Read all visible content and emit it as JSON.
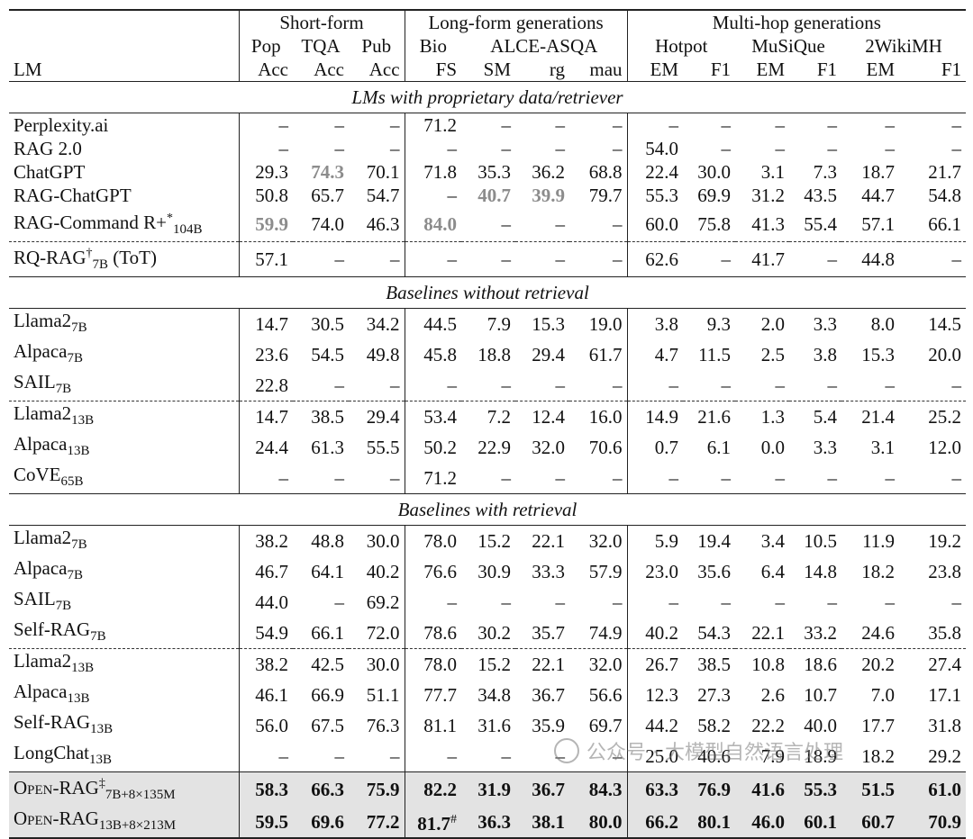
{
  "header": {
    "lm_label": "LM",
    "groups": {
      "short": "Short-form",
      "long": "Long-form generations",
      "multihop": "Multi-hop generations"
    },
    "subgroups": {
      "pop": "Pop",
      "tqa": "TQA",
      "pub": "Pub",
      "bio": "Bio",
      "alce": "ALCE-ASQA",
      "hotpot": "Hotpot",
      "musique": "MuSiQue",
      "wiki": "2WikiMH"
    },
    "metrics": [
      "Acc",
      "Acc",
      "Acc",
      "FS",
      "SM",
      "rg",
      "mau",
      "EM",
      "F1",
      "EM",
      "F1",
      "EM",
      "F1"
    ]
  },
  "sections": {
    "proprietary": "LMs with proprietary data/retriever",
    "no_retrieval": "Baselines without retrieval",
    "with_retrieval": "Baselines with retrieval"
  },
  "rows": {
    "perplexity": {
      "name": "Perplexity.ai",
      "vals": [
        "–",
        "–",
        "–",
        "71.2",
        "–",
        "–",
        "–",
        "–",
        "–",
        "–",
        "–",
        "–",
        "–"
      ]
    },
    "rag2": {
      "name": "RAG 2.0",
      "vals": [
        "–",
        "–",
        "–",
        "–",
        "–",
        "–",
        "–",
        "54.0",
        "–",
        "–",
        "–",
        "–",
        "–"
      ]
    },
    "chatgpt": {
      "name": "ChatGPT",
      "vals": [
        "29.3",
        "74.3",
        "70.1",
        "71.8",
        "35.3",
        "36.2",
        "68.8",
        "22.4",
        "30.0",
        "3.1",
        "7.3",
        "18.7",
        "21.7"
      ]
    },
    "ragchatgpt": {
      "name": "RAG-ChatGPT",
      "vals": [
        "50.8",
        "65.7",
        "54.7",
        "–",
        "40.7",
        "39.9",
        "79.7",
        "55.3",
        "69.9",
        "31.2",
        "43.5",
        "44.7",
        "54.8"
      ]
    },
    "ragcommand": {
      "name": "RAG-Command R+",
      "sup": "*",
      "sub": "104B",
      "vals": [
        "59.9",
        "74.0",
        "46.3",
        "84.0",
        "–",
        "–",
        "–",
        "60.0",
        "75.8",
        "41.3",
        "55.4",
        "57.1",
        "66.1"
      ]
    },
    "rqrag": {
      "name": "RQ-RAG",
      "sup": "†",
      "sub": "7B",
      "suffix": " (ToT)",
      "vals": [
        "57.1",
        "–",
        "–",
        "–",
        "–",
        "–",
        "–",
        "62.6",
        "–",
        "41.7",
        "–",
        "44.8",
        "–"
      ]
    },
    "nr_llama7": {
      "name": "Llama2",
      "sub": "7B",
      "vals": [
        "14.7",
        "30.5",
        "34.2",
        "44.5",
        "7.9",
        "15.3",
        "19.0",
        "3.8",
        "9.3",
        "2.0",
        "3.3",
        "8.0",
        "14.5"
      ]
    },
    "nr_alpaca7": {
      "name": "Alpaca",
      "sub": "7B",
      "vals": [
        "23.6",
        "54.5",
        "49.8",
        "45.8",
        "18.8",
        "29.4",
        "61.7",
        "4.7",
        "11.5",
        "2.5",
        "3.8",
        "15.3",
        "20.0"
      ]
    },
    "nr_sail7": {
      "name": "SAIL",
      "sub": "7B",
      "vals": [
        "22.8",
        "–",
        "–",
        "–",
        "–",
        "–",
        "–",
        "–",
        "–",
        "–",
        "–",
        "–",
        "–"
      ]
    },
    "nr_llama13": {
      "name": "Llama2",
      "sub": "13B",
      "vals": [
        "14.7",
        "38.5",
        "29.4",
        "53.4",
        "7.2",
        "12.4",
        "16.0",
        "14.9",
        "21.6",
        "1.3",
        "5.4",
        "21.4",
        "25.2"
      ]
    },
    "nr_alpaca13": {
      "name": "Alpaca",
      "sub": "13B",
      "vals": [
        "24.4",
        "61.3",
        "55.5",
        "50.2",
        "22.9",
        "32.0",
        "70.6",
        "0.7",
        "6.1",
        "0.0",
        "3.3",
        "3.1",
        "12.0"
      ]
    },
    "nr_cove65": {
      "name": "CoVE",
      "sub": "65B",
      "vals": [
        "–",
        "–",
        "–",
        "71.2",
        "–",
        "–",
        "–",
        "–",
        "–",
        "–",
        "–",
        "–",
        "–"
      ]
    },
    "r_llama7": {
      "name": "Llama2",
      "sub": "7B",
      "vals": [
        "38.2",
        "48.8",
        "30.0",
        "78.0",
        "15.2",
        "22.1",
        "32.0",
        "5.9",
        "19.4",
        "3.4",
        "10.5",
        "11.9",
        "19.2"
      ]
    },
    "r_alpaca7": {
      "name": "Alpaca",
      "sub": "7B",
      "vals": [
        "46.7",
        "64.1",
        "40.2",
        "76.6",
        "30.9",
        "33.3",
        "57.9",
        "23.0",
        "35.6",
        "6.4",
        "14.8",
        "18.2",
        "23.8"
      ]
    },
    "r_sail7": {
      "name": "SAIL",
      "sub": "7B",
      "vals": [
        "44.0",
        "–",
        "69.2",
        "–",
        "–",
        "–",
        "–",
        "–",
        "–",
        "–",
        "–",
        "–",
        "–"
      ]
    },
    "r_selfrag7": {
      "name": "Self-RAG",
      "sub": "7B",
      "vals": [
        "54.9",
        "66.1",
        "72.0",
        "78.6",
        "30.2",
        "35.7",
        "74.9",
        "40.2",
        "54.3",
        "22.1",
        "33.2",
        "24.6",
        "35.8"
      ]
    },
    "r_llama13": {
      "name": "Llama2",
      "sub": "13B",
      "vals": [
        "38.2",
        "42.5",
        "30.0",
        "78.0",
        "15.2",
        "22.1",
        "32.0",
        "26.7",
        "38.5",
        "10.8",
        "18.6",
        "20.2",
        "27.4"
      ]
    },
    "r_alpaca13": {
      "name": "Alpaca",
      "sub": "13B",
      "vals": [
        "46.1",
        "66.9",
        "51.1",
        "77.7",
        "34.8",
        "36.7",
        "56.6",
        "12.3",
        "27.3",
        "2.6",
        "10.7",
        "7.0",
        "17.1"
      ]
    },
    "r_selfrag13": {
      "name": "Self-RAG",
      "sub": "13B",
      "vals": [
        "56.0",
        "67.5",
        "76.3",
        "81.1",
        "31.6",
        "35.9",
        "69.7",
        "44.2",
        "58.2",
        "22.2",
        "40.0",
        "17.7",
        "31.8"
      ]
    },
    "r_longchat13": {
      "name": "LongChat",
      "sub": "13B",
      "vals": [
        "–",
        "–",
        "–",
        "–",
        "–",
        "–",
        "–",
        "25.0",
        "40.6",
        "7.9",
        "18.9",
        "18.2",
        "29.2"
      ]
    },
    "openrag7": {
      "name": "Open-RAG",
      "sup": "‡",
      "sub": "7B+8×135M",
      "vals": [
        "58.3",
        "66.3",
        "75.9",
        "82.2",
        "31.9",
        "36.7",
        "84.3",
        "63.3",
        "76.9",
        "41.6",
        "55.3",
        "51.5",
        "61.0"
      ]
    },
    "openrag13": {
      "name": "Open-RAG",
      "sub": "13B+8×213M",
      "vals": [
        "59.5",
        "69.6",
        "77.2",
        "81.7",
        "36.3",
        "38.1",
        "80.0",
        "66.2",
        "80.1",
        "46.0",
        "60.1",
        "60.7",
        "70.9"
      ],
      "bio_sup": "#"
    }
  },
  "watermark": "公众号 · 大模型自然语言处理",
  "colors": {
    "highlight": "#e3e3e3",
    "grey_text": "#8c8c8c"
  }
}
